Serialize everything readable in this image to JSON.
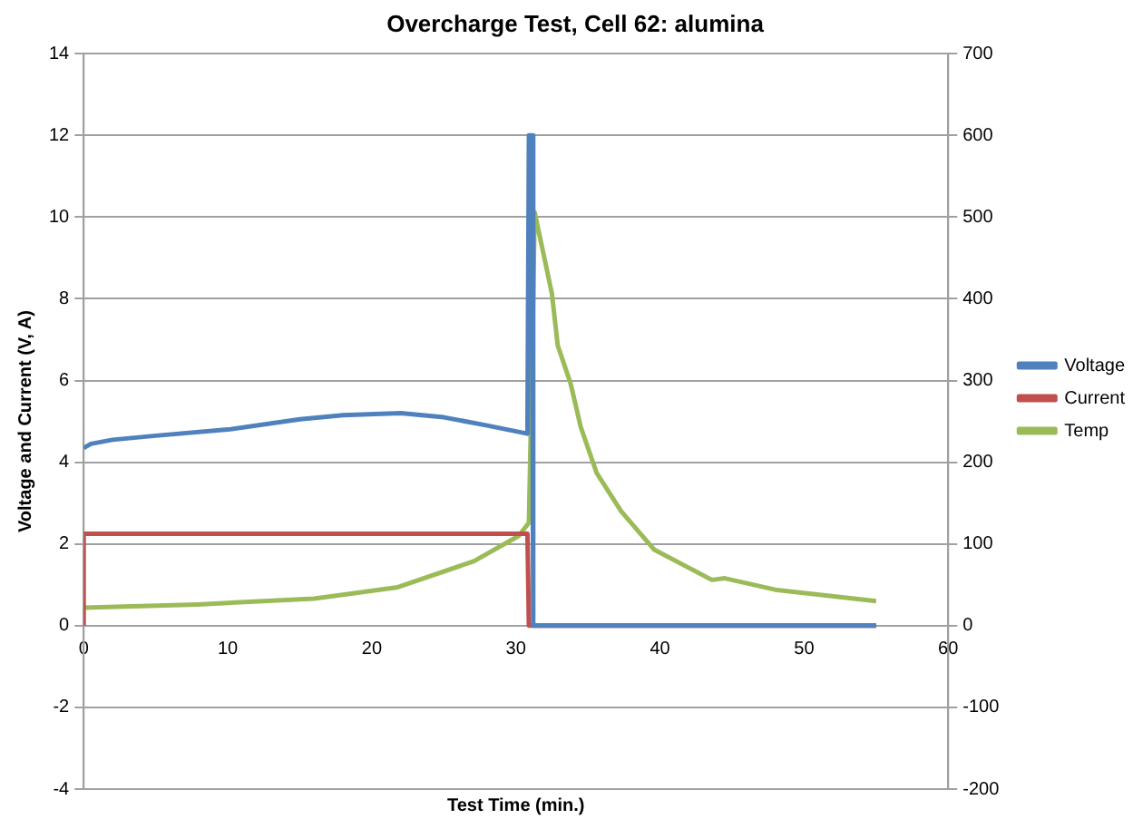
{
  "chart_data": {
    "type": "line",
    "title": "Overcharge Test, Cell 62: alumina",
    "xlabel": "Test Time (min.)",
    "ylabel": "Voltage and Current (V, A)",
    "xlim": [
      0,
      60
    ],
    "xticks": [
      0,
      10,
      20,
      30,
      40,
      50,
      60
    ],
    "ylim": [
      -4,
      14
    ],
    "yticks": [
      -4,
      -2,
      0,
      2,
      4,
      6,
      8,
      10,
      12,
      14
    ],
    "y2lim": [
      -200,
      700
    ],
    "y2ticks": [
      -200,
      -100,
      0,
      100,
      200,
      300,
      400,
      500,
      600,
      700
    ],
    "grid": "y",
    "legend": "right",
    "marker": "none",
    "line_style": "solid",
    "series": [
      {
        "name": "Voltage",
        "color": "#4f81bd",
        "x": [
          0,
          0.5,
          2,
          5,
          10,
          15,
          18,
          22,
          25,
          28,
          30.8,
          30.9,
          31.1,
          31.2,
          55
        ],
        "values": [
          4.35,
          4.45,
          4.55,
          4.65,
          4.8,
          5.05,
          5.15,
          5.2,
          5.1,
          4.9,
          4.7,
          12,
          12,
          0,
          0
        ]
      },
      {
        "name": "Current",
        "color": "#c0504d",
        "x": [
          0,
          0,
          30.8,
          30.9,
          55
        ],
        "values": [
          0,
          2.25,
          2.25,
          0,
          0
        ]
      },
      {
        "name": "Temp",
        "color": "#9bbb59",
        "axis": "y2",
        "x": [
          0,
          7.9,
          16,
          21.8,
          27.1,
          30.2,
          30.9,
          31.1,
          31.3,
          32.5,
          32.9,
          33.8,
          34.5,
          35.6,
          37.3,
          39.6,
          43.6,
          44.5,
          48,
          55
        ],
        "values": [
          22,
          26,
          33,
          47,
          79,
          110,
          126,
          300,
          506,
          406,
          343,
          296,
          243,
          187,
          140,
          93,
          56,
          58,
          44,
          30
        ]
      }
    ]
  }
}
